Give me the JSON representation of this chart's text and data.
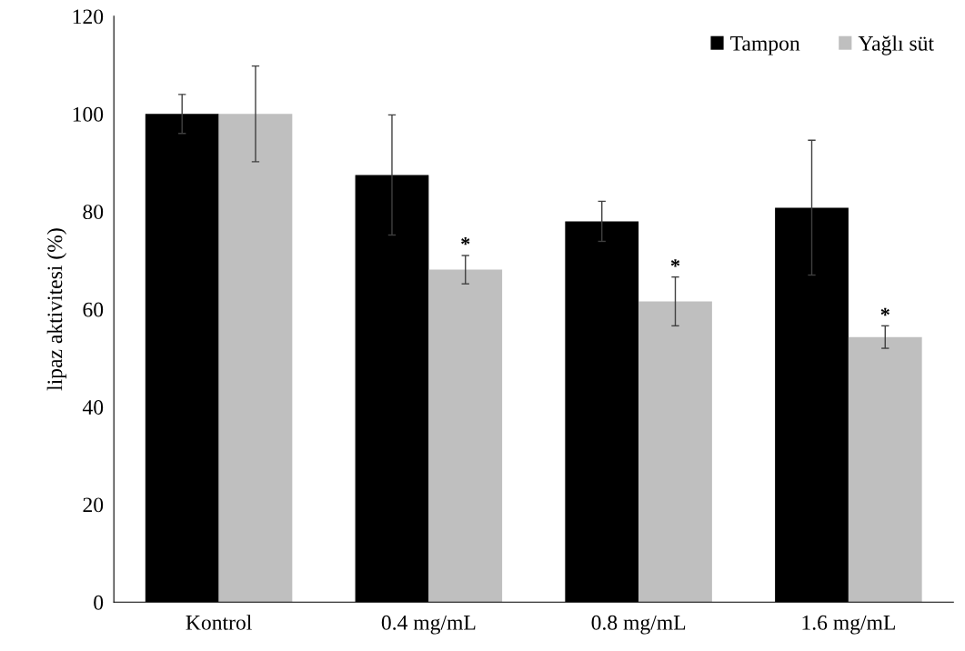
{
  "chart_data": {
    "type": "bar",
    "ylabel": "lipaz aktivitesi (%)",
    "categories": [
      "Kontrol",
      "0.4 mg/mL",
      "0.8 mg/mL",
      "1.6 mg/mL"
    ],
    "series": [
      {
        "name": "Tampon",
        "color": "#000000",
        "values": [
          100,
          87.5,
          78.0,
          80.8
        ],
        "errors": [
          4,
          12.3,
          4.1,
          13.8
        ]
      },
      {
        "name": "Yağlı süt",
        "color": "#bfbfbf",
        "values": [
          100,
          68.1,
          61.6,
          54.3
        ],
        "errors": [
          9.8,
          2.9,
          5.0,
          2.3
        ]
      }
    ],
    "annotations": [
      {
        "text": "*",
        "x": "0.4 mg/mL",
        "y": 73
      },
      {
        "text": "*",
        "x": "0.8 mg/mL",
        "y": 68.5
      },
      {
        "text": "*",
        "x": "1.6 mg/mL",
        "y": 58.5
      }
    ],
    "ylim": [
      0,
      120
    ],
    "yticks": [
      0,
      20,
      40,
      60,
      80,
      100,
      120
    ],
    "legend": "top right",
    "grid": false
  }
}
